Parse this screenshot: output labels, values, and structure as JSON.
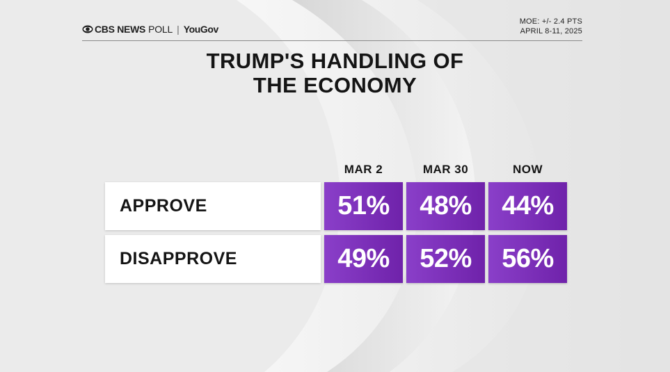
{
  "header": {
    "brand_cbs": "CBS NEWS",
    "brand_poll": "POLL",
    "brand_sep": "|",
    "brand_yougov": "YouGov",
    "moe": "MOE: +/- 2.4 PTS",
    "dates": "APRIL 8-11, 2025"
  },
  "title_line1": "TRUMP'S HANDLING OF",
  "title_line2": "THE ECONOMY",
  "colors": {
    "accent_purple": "#7b2fb8",
    "background": "#ececec",
    "text": "#141414"
  },
  "chart_data": {
    "type": "table",
    "title": "TRUMP'S HANDLING OF THE ECONOMY",
    "columns": [
      "MAR 2",
      "MAR 30",
      "NOW"
    ],
    "rows": [
      {
        "label": "APPROVE",
        "values": [
          51,
          48,
          44
        ],
        "display": [
          "51%",
          "48%",
          "44%"
        ]
      },
      {
        "label": "DISAPPROVE",
        "values": [
          49,
          52,
          56
        ],
        "display": [
          "49%",
          "52%",
          "56%"
        ]
      }
    ],
    "unit": "%"
  }
}
